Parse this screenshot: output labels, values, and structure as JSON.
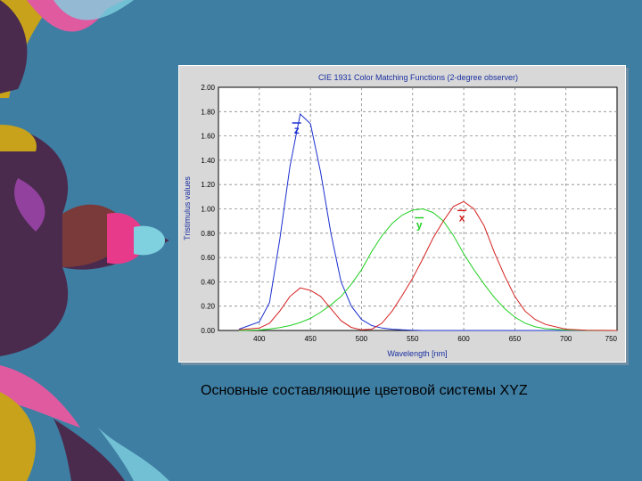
{
  "caption": "Основные составляющие цветовой системы XYZ",
  "chart_data": {
    "type": "line",
    "title": "CIE 1931 Color Matching Functions (2-degree observer)",
    "xlabel": "Wavelength [nm]",
    "ylabel": "Tristimulus values",
    "xlim": [
      360,
      750
    ],
    "ylim": [
      0,
      2.0
    ],
    "grid": true,
    "x_ticks": [
      "400",
      "450",
      "500",
      "550",
      "600",
      "650",
      "700",
      "750"
    ],
    "y_ticks": [
      "0.00",
      "0.20",
      "0.40",
      "0.60",
      "0.80",
      "1.00",
      "1.20",
      "1.40",
      "1.60",
      "1.80",
      "2.00"
    ],
    "x": [
      380,
      400,
      410,
      420,
      430,
      440,
      450,
      460,
      470,
      480,
      490,
      500,
      510,
      520,
      530,
      540,
      550,
      560,
      570,
      580,
      590,
      600,
      610,
      620,
      630,
      640,
      650,
      660,
      670,
      680,
      700,
      720,
      750
    ],
    "series": [
      {
        "name": "z̄",
        "label": "z",
        "color": "#1a2fd0",
        "values": [
          0.01,
          0.07,
          0.23,
          0.75,
          1.35,
          1.78,
          1.7,
          1.3,
          0.8,
          0.4,
          0.2,
          0.09,
          0.04,
          0.02,
          0.01,
          0.005,
          0.002,
          0,
          0,
          0,
          0,
          0,
          0,
          0,
          0,
          0,
          0,
          0,
          0,
          0,
          0,
          0,
          0
        ]
      },
      {
        "name": "ȳ",
        "label": "y",
        "color": "#22d022",
        "values": [
          0,
          0.004,
          0.012,
          0.024,
          0.04,
          0.065,
          0.1,
          0.15,
          0.21,
          0.28,
          0.38,
          0.5,
          0.65,
          0.78,
          0.88,
          0.95,
          0.99,
          1.0,
          0.97,
          0.9,
          0.78,
          0.63,
          0.5,
          0.38,
          0.27,
          0.18,
          0.11,
          0.06,
          0.03,
          0.015,
          0.004,
          0.001,
          0
        ]
      },
      {
        "name": "x̄",
        "label": "x",
        "color": "#d42020",
        "values": [
          0.005,
          0.02,
          0.06,
          0.16,
          0.28,
          0.35,
          0.33,
          0.28,
          0.18,
          0.08,
          0.025,
          0.005,
          0.01,
          0.06,
          0.16,
          0.29,
          0.43,
          0.59,
          0.76,
          0.9,
          1.02,
          1.06,
          1.0,
          0.86,
          0.64,
          0.45,
          0.28,
          0.16,
          0.09,
          0.05,
          0.01,
          0.002,
          0
        ]
      }
    ]
  }
}
